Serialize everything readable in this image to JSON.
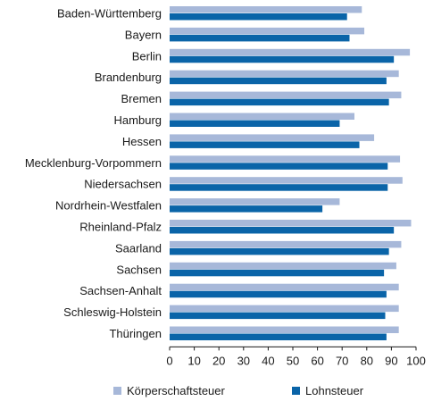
{
  "chart_data": {
    "type": "bar",
    "orientation": "horizontal",
    "categories": [
      "Baden-Württemberg",
      "Bayern",
      "Berlin",
      "Brandenburg",
      "Bremen",
      "Hamburg",
      "Hessen",
      "Mecklenburg-Vorpommern",
      "Niedersachsen",
      "Nordrhein-Westfalen",
      "Rheinland-Pfalz",
      "Saarland",
      "Sachsen",
      "Sachsen-Anhalt",
      "Schleswig-Holstein",
      "Thüringen"
    ],
    "series": [
      {
        "name": "Körperschaftsteuer",
        "color": "#a7b8d9",
        "values": [
          78,
          79,
          97.5,
          93,
          94,
          75,
          83,
          93.5,
          94.5,
          69,
          98,
          94,
          92,
          93,
          93,
          93
        ]
      },
      {
        "name": "Lohnsteuer",
        "color": "#0a64a8",
        "values": [
          72,
          73,
          91,
          88,
          89,
          69,
          77,
          88.5,
          88.5,
          62,
          91,
          89,
          87,
          88,
          87.5,
          88
        ]
      }
    ],
    "xlim": [
      0,
      100
    ],
    "xticks": [
      0,
      10,
      20,
      30,
      40,
      50,
      60,
      70,
      80,
      90,
      100
    ],
    "grid": false,
    "legend_position": "bottom"
  }
}
